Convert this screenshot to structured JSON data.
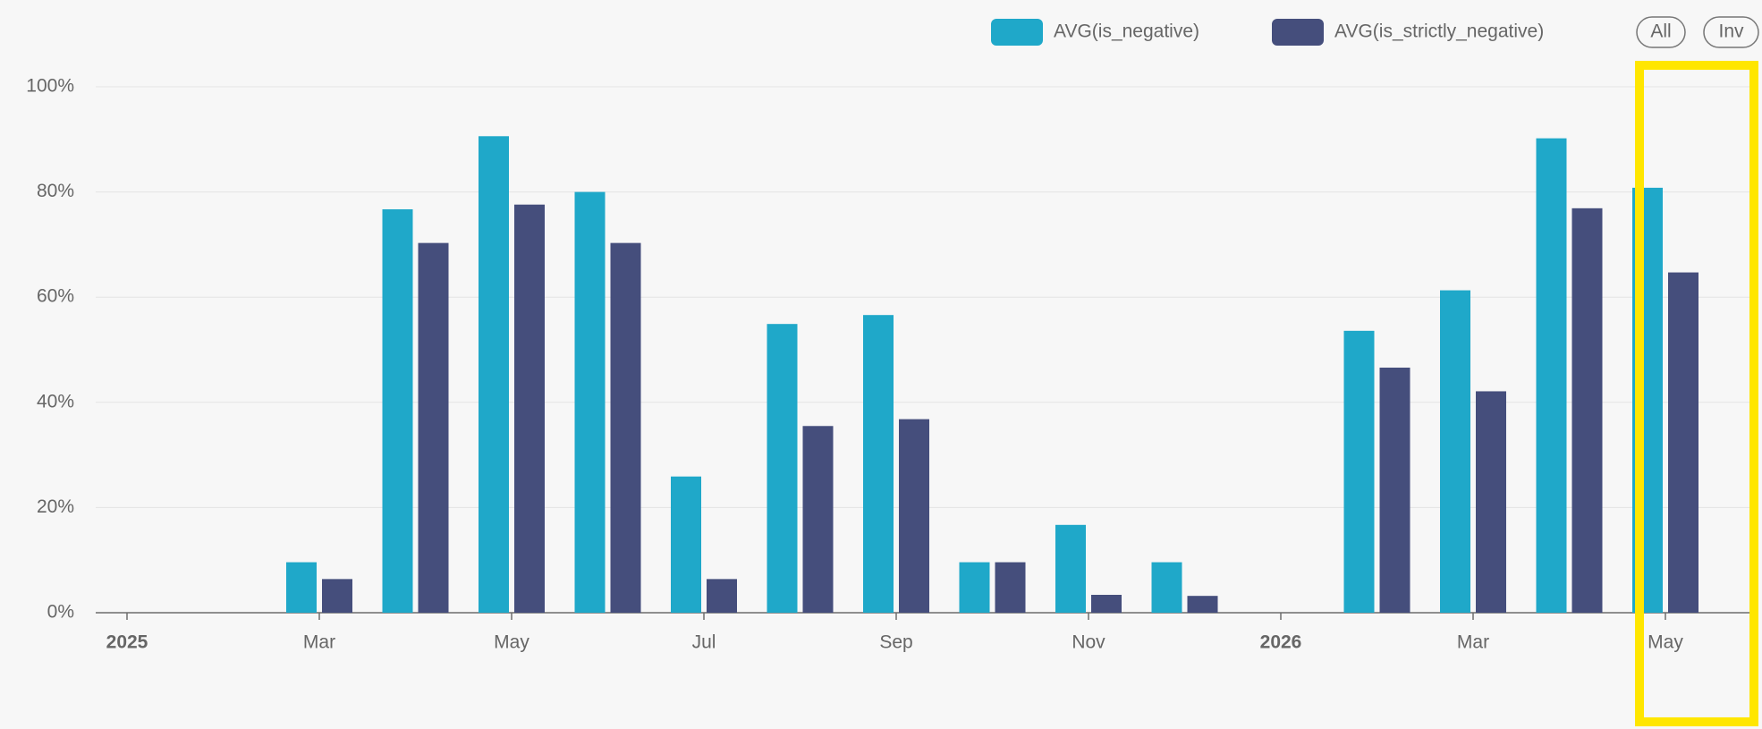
{
  "chart_data": {
    "type": "bar",
    "categories": [
      "2025",
      null,
      "Mar",
      null,
      "May",
      null,
      "Jul",
      null,
      "Sep",
      null,
      "Nov",
      null,
      "2026",
      null,
      "Mar",
      null,
      "May"
    ],
    "series": [
      {
        "name": "AVG(is_negative)",
        "color": "#1fa8c9",
        "values": [
          null,
          null,
          9.6,
          76.7,
          90.6,
          80,
          25.9,
          54.9,
          56.6,
          9.6,
          16.7,
          9.6,
          null,
          53.6,
          61.3,
          90.2,
          80.8
        ]
      },
      {
        "name": "AVG(is_strictly_negative)",
        "color": "#454e7c",
        "values": [
          null,
          null,
          6.4,
          70.3,
          77.6,
          70.3,
          6.4,
          35.5,
          36.8,
          9.6,
          3.4,
          3.2,
          null,
          46.6,
          42.1,
          76.9,
          64.7
        ]
      }
    ],
    "ylim": [
      0,
      100
    ],
    "yticks": [
      {
        "value": 0,
        "label": "0%"
      },
      {
        "value": 20,
        "label": "20%"
      },
      {
        "value": 40,
        "label": "40%"
      },
      {
        "value": 60,
        "label": "60%"
      },
      {
        "value": 80,
        "label": "80%"
      },
      {
        "value": 100,
        "label": "100%"
      }
    ],
    "grid": true,
    "legend_buttons": [
      "All",
      "Inv"
    ]
  }
}
